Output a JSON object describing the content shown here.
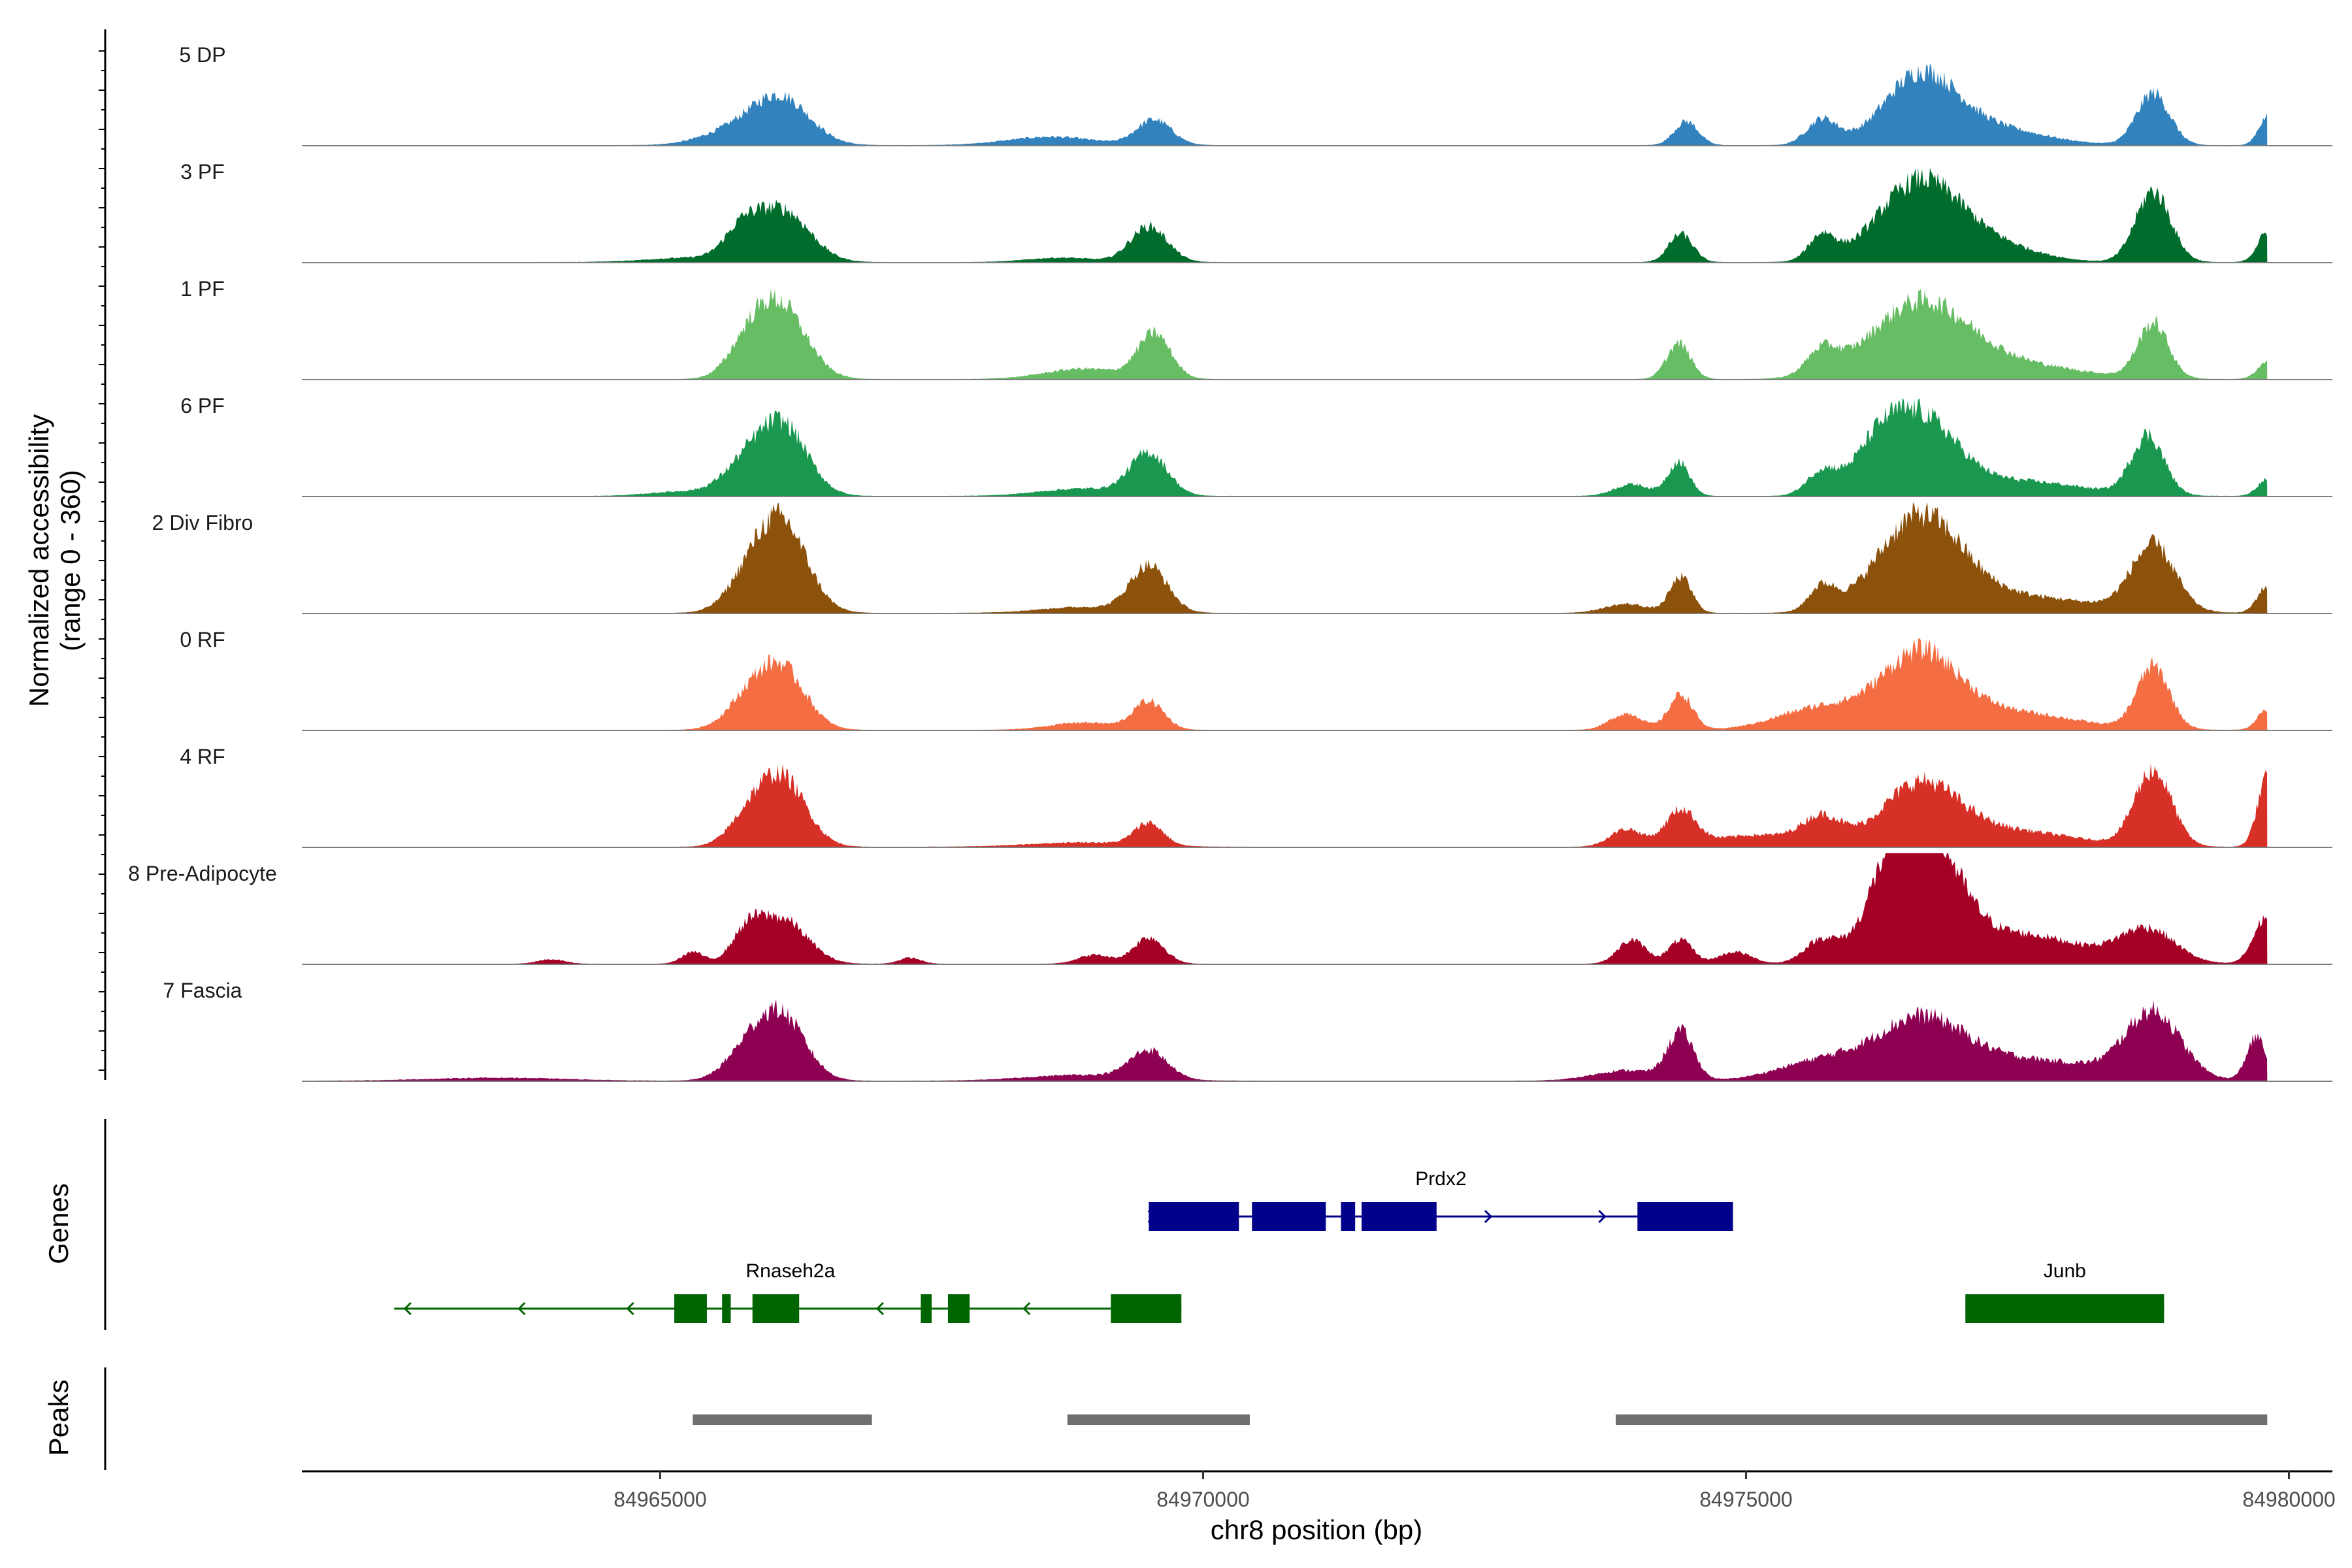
{
  "chart_data": {
    "type": "area",
    "title": "",
    "xlabel": "chr8 position (bp)",
    "ylabel": "Normalized accessibility",
    "ylabel_range": "(range 0 - 360)",
    "genes_label": "Genes",
    "peaks_label": "Peaks",
    "y_range": [
      0,
      360
    ],
    "x_range": [
      84961700,
      84980400
    ],
    "x_ticks": [
      84965000,
      84970000,
      84975000,
      84980000
    ],
    "x_tick_labels": [
      "84965000",
      "84970000",
      "84975000",
      "84980000"
    ],
    "track_extent_bp": [
      84961700,
      84979800
    ],
    "series": [
      {
        "name": "5 DP",
        "color": "#3182bd",
        "peaks": [
          [
            84966120,
            150,
            260
          ],
          [
            84965700,
            50,
            300
          ],
          [
            84969550,
            85,
            160
          ],
          [
            84968600,
            28,
            400
          ],
          [
            84974450,
            80,
            110
          ],
          [
            84975700,
            85,
            140
          ],
          [
            84976600,
            220,
            330
          ],
          [
            84977200,
            60,
            500
          ],
          [
            84978750,
            175,
            150
          ],
          [
            84979800,
            95,
            80
          ]
        ]
      },
      {
        "name": "3 PF",
        "color": "#006d2c",
        "peaks": [
          [
            84966120,
            175,
            250
          ],
          [
            84965750,
            85,
            160
          ],
          [
            84965300,
            15,
            400
          ],
          [
            84969500,
            120,
            170
          ],
          [
            84968700,
            15,
            300
          ],
          [
            84974400,
            95,
            110
          ],
          [
            84975700,
            85,
            120
          ],
          [
            84976600,
            270,
            380
          ],
          [
            84977300,
            50,
            400
          ],
          [
            84978750,
            240,
            160
          ],
          [
            84979800,
            100,
            90
          ]
        ]
      },
      {
        "name": "1 PF",
        "color": "#66bd63",
        "peaks": [
          [
            84966100,
            245,
            240
          ],
          [
            84965800,
            80,
            180
          ],
          [
            84969550,
            150,
            150
          ],
          [
            84968900,
            35,
            350
          ],
          [
            84974380,
            120,
            110
          ],
          [
            84975700,
            80,
            140
          ],
          [
            84976600,
            250,
            450
          ],
          [
            84977500,
            45,
            600
          ],
          [
            84978750,
            185,
            140
          ],
          [
            84979800,
            55,
            90
          ]
        ]
      },
      {
        "name": "6 PF",
        "color": "#1a9850",
        "peaks": [
          [
            84966120,
            240,
            230
          ],
          [
            84965750,
            80,
            200
          ],
          [
            84965200,
            15,
            300
          ],
          [
            84969500,
            140,
            170
          ],
          [
            84968900,
            25,
            400
          ],
          [
            84974380,
            115,
            100
          ],
          [
            84973950,
            40,
            160
          ],
          [
            84975700,
            80,
            140
          ],
          [
            84976600,
            250,
            330
          ],
          [
            84976200,
            110,
            220
          ],
          [
            84977500,
            50,
            600
          ],
          [
            84978700,
            200,
            150
          ],
          [
            84979800,
            55,
            90
          ]
        ]
      },
      {
        "name": "2 Div Fibro",
        "color": "#8c510a",
        "peaks": [
          [
            84966120,
            300,
            230
          ],
          [
            84965800,
            85,
            200
          ],
          [
            84969500,
            155,
            170
          ],
          [
            84968900,
            20,
            400
          ],
          [
            84974400,
            120,
            100
          ],
          [
            84973900,
            30,
            200
          ],
          [
            84975700,
            80,
            120
          ],
          [
            84976600,
            310,
            380
          ],
          [
            84977500,
            55,
            700
          ],
          [
            84978750,
            220,
            200
          ],
          [
            84979800,
            90,
            90
          ]
        ]
      },
      {
        "name": "0 RF",
        "color": "#f46d43",
        "peaks": [
          [
            84966120,
            200,
            220
          ],
          [
            84965800,
            85,
            200
          ],
          [
            84969500,
            95,
            140
          ],
          [
            84968900,
            25,
            300
          ],
          [
            84974400,
            120,
            110
          ],
          [
            84973900,
            55,
            150
          ],
          [
            84975700,
            75,
            400
          ],
          [
            84976600,
            240,
            350
          ],
          [
            84977400,
            60,
            600
          ],
          [
            84978750,
            210,
            150
          ],
          [
            84979800,
            70,
            90
          ]
        ]
      },
      {
        "name": "4 RF",
        "color": "#d73027",
        "peaks": [
          [
            84966120,
            230,
            220
          ],
          [
            84965800,
            75,
            180
          ],
          [
            84969500,
            75,
            130
          ],
          [
            84968900,
            15,
            500
          ],
          [
            84974400,
            120,
            140
          ],
          [
            84973900,
            60,
            150
          ],
          [
            84975700,
            90,
            180
          ],
          [
            84975100,
            40,
            400
          ],
          [
            84976600,
            200,
            350
          ],
          [
            84977400,
            55,
            600
          ],
          [
            84978750,
            255,
            170
          ],
          [
            84979800,
            230,
            90
          ]
        ]
      },
      {
        "name": "8 Pre-Adipocyte",
        "color": "#a50026",
        "peaks": [
          [
            84966120,
            150,
            230
          ],
          [
            84965800,
            90,
            140
          ],
          [
            84965300,
            40,
            100
          ],
          [
            84969500,
            90,
            140
          ],
          [
            84969000,
            30,
            150
          ],
          [
            84974400,
            80,
            110
          ],
          [
            84973950,
            80,
            130
          ],
          [
            84974900,
            40,
            150
          ],
          [
            84975700,
            80,
            160
          ],
          [
            84976650,
            400,
            300
          ],
          [
            84976300,
            180,
            220
          ],
          [
            84977500,
            100,
            600
          ],
          [
            84978700,
            110,
            250
          ],
          [
            84979800,
            160,
            120
          ],
          [
            84964000,
            15,
            120
          ],
          [
            84967300,
            20,
            100
          ]
        ]
      },
      {
        "name": "7 Fascia",
        "color": "#8e0152",
        "peaks": [
          [
            84966120,
            210,
            220
          ],
          [
            84965800,
            90,
            200
          ],
          [
            84969500,
            95,
            170
          ],
          [
            84968900,
            20,
            500
          ],
          [
            84974400,
            160,
            120
          ],
          [
            84973900,
            35,
            300
          ],
          [
            84975700,
            65,
            400
          ],
          [
            84976600,
            190,
            400
          ],
          [
            84977600,
            70,
            700
          ],
          [
            84978750,
            220,
            250
          ],
          [
            84979700,
            145,
            90
          ],
          [
            84963500,
            10,
            600
          ]
        ]
      }
    ],
    "genes": [
      {
        "name": "Prdx2",
        "strand": "+",
        "color": "#00008b",
        "start": 84969500,
        "end": 84974880,
        "exons": [
          [
            84969500,
            84970330
          ],
          [
            84970450,
            84971130
          ],
          [
            84971270,
            84971400
          ],
          [
            84971460,
            84972150
          ],
          [
            84974000,
            84974880
          ]
        ],
        "arrows": [
          84969550,
          84972650,
          84973700
        ]
      },
      {
        "name": "Rnaseh2a",
        "strand": "-",
        "color": "#006400",
        "start": 84962550,
        "end": 84969800,
        "exons": [
          [
            84965130,
            84965430
          ],
          [
            84965570,
            84965650
          ],
          [
            84965850,
            84966280
          ],
          [
            84967400,
            84967500
          ],
          [
            84967650,
            84967850
          ],
          [
            84969150,
            84969800
          ]
        ],
        "arrows": [
          84962650,
          84963700,
          84964700,
          84967000,
          84968350
        ]
      },
      {
        "name": "Junb",
        "strand": "+",
        "color": "#006400",
        "start": 84977020,
        "end": 84978850,
        "exons": [
          [
            84977020,
            84978850
          ]
        ],
        "arrows": []
      }
    ],
    "peaks": [
      [
        84965300,
        84966950
      ],
      [
        84968750,
        84970430
      ],
      [
        84973800,
        84979800
      ]
    ]
  }
}
